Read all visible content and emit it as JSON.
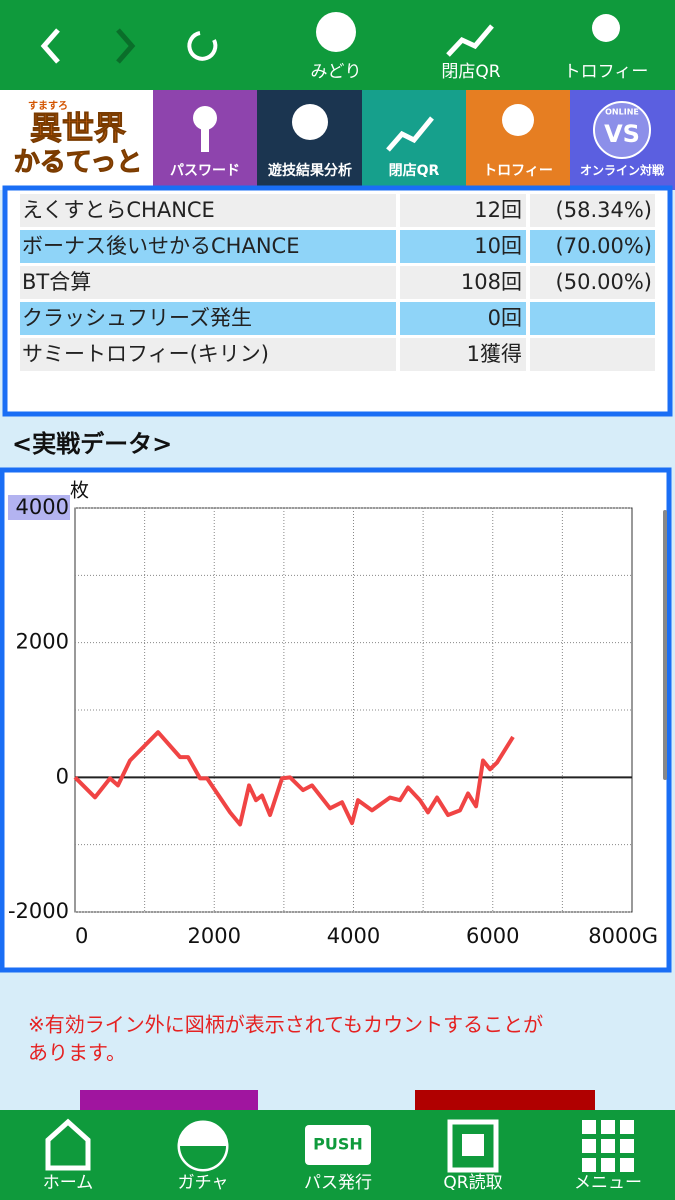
{
  "top_nav": {
    "labels": [
      "みどり",
      "閉店QR",
      "トロフィー"
    ]
  },
  "logo": {
    "small": "すますろ",
    "line1": "異世界",
    "line2": "かるてっと"
  },
  "tabs": [
    "パスワード",
    "遊技結果分析",
    "閉店QR",
    "トロフィー",
    "オンライン対戦"
  ],
  "tab_icon_texts": {
    "online": "ONLINE",
    "vs": "VS"
  },
  "table": {
    "rows": [
      [
        "えくすとらCHANCE",
        "12回",
        "(58.34%)"
      ],
      [
        "ボーナス後いせかるCHANCE",
        "10回",
        "(70.00%)"
      ],
      [
        "BT合算",
        "108回",
        "(50.00%)"
      ],
      [
        "クラッシュフリーズ発生",
        "0回"
      ],
      [
        "サミートロフィー(キリン)",
        "1獲得"
      ]
    ]
  },
  "section_title": "<実戦データ>",
  "chart_data": {
    "type": "line",
    "y_unit": "枚",
    "x": [
      0,
      287,
      503,
      617,
      790,
      1193,
      1509,
      1624,
      1796,
      1897,
      2227,
      2371,
      2500,
      2600,
      2686,
      2801,
      2973,
      3088,
      3275,
      3404,
      3663,
      3835,
      3979,
      4065,
      4266,
      4525,
      4668,
      4783,
      4955,
      5070,
      5200,
      5358,
      5530,
      5645,
      5760,
      5860,
      5961,
      6062,
      6291
    ],
    "series": [
      {
        "color": "#f04444",
        "values": [
          0,
          -297,
          -15,
          -120,
          250,
          670,
          300,
          300,
          -15,
          -15,
          -520,
          -700,
          -120,
          -340,
          -270,
          -560,
          -15,
          0,
          -190,
          -120,
          -460,
          -370,
          -680,
          -340,
          -490,
          -300,
          -340,
          -150,
          -340,
          -520,
          -300,
          -560,
          -490,
          -240,
          -430,
          250,
          120,
          220,
          600
        ]
      }
    ],
    "xlim": [
      0,
      8000
    ],
    "xticks": [
      0,
      2000,
      4000,
      6000,
      {
        "value": 8000,
        "label": "8000G"
      }
    ],
    "ylim": [
      -2000,
      4000
    ],
    "yticks": [
      -2000,
      0,
      2000,
      4000
    ],
    "minor_yticks": [
      -1000,
      1000,
      3000
    ],
    "minor_xticks": [
      1000,
      3000,
      5000,
      7000
    ],
    "grid": true
  },
  "note": [
    "※有効ライン外に図柄が表示されてもカウントすることが",
    "あります。"
  ],
  "bottom_nav": {
    "labels": [
      "ホーム",
      "ガチャ",
      "パス発行",
      "QR読取",
      "メニュー"
    ],
    "push": "PUSH"
  }
}
